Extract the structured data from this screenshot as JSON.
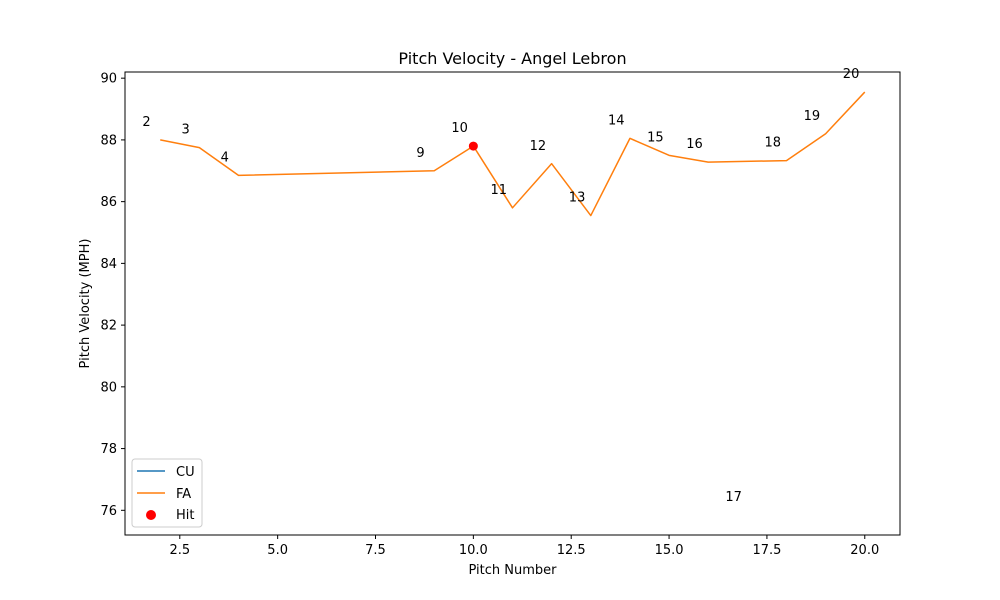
{
  "chart_data": {
    "type": "line",
    "title": "Pitch Velocity - Angel Lebron",
    "xlabel": "Pitch Number",
    "ylabel": "Pitch Velocity (MPH)",
    "xlim": [
      1.1,
      20.9
    ],
    "ylim": [
      75.2,
      90.2
    ],
    "xticks": [
      2.5,
      5.0,
      7.5,
      10.0,
      12.5,
      15.0,
      17.5,
      20.0
    ],
    "xtick_labels": [
      "2.5",
      "5.0",
      "7.5",
      "10.0",
      "12.5",
      "15.0",
      "17.5",
      "20.0"
    ],
    "yticks": [
      76,
      78,
      80,
      82,
      84,
      86,
      88,
      90
    ],
    "ytick_labels": [
      "76",
      "78",
      "80",
      "82",
      "84",
      "86",
      "88",
      "90"
    ],
    "grid": false,
    "legend_position": "lower-left",
    "series": [
      {
        "name": "CU",
        "color": "#1f77b4",
        "x": [],
        "y": []
      },
      {
        "name": "FA",
        "color": "#ff7f0e",
        "x": [
          2,
          3,
          4,
          9,
          10,
          11,
          12,
          13,
          14,
          15,
          16,
          18,
          19,
          20
        ],
        "y": [
          88.0,
          87.75,
          86.85,
          87.0,
          87.8,
          85.8,
          87.23,
          85.55,
          88.05,
          87.5,
          87.28,
          87.33,
          88.2,
          89.55
        ]
      }
    ],
    "scatter": [
      {
        "name": "Hit",
        "color": "#ff0000",
        "x": [
          10
        ],
        "y": [
          87.8
        ]
      }
    ],
    "annotations": [
      {
        "text": "2",
        "x": 1.65,
        "y": 88.45
      },
      {
        "text": "3",
        "x": 2.65,
        "y": 88.2
      },
      {
        "text": "4",
        "x": 3.65,
        "y": 87.3
      },
      {
        "text": "9",
        "x": 8.65,
        "y": 87.45
      },
      {
        "text": "10",
        "x": 9.65,
        "y": 88.25
      },
      {
        "text": "11",
        "x": 10.65,
        "y": 86.25
      },
      {
        "text": "12",
        "x": 11.65,
        "y": 87.68
      },
      {
        "text": "13",
        "x": 12.65,
        "y": 86.0
      },
      {
        "text": "14",
        "x": 13.65,
        "y": 88.5
      },
      {
        "text": "15",
        "x": 14.65,
        "y": 87.95
      },
      {
        "text": "16",
        "x": 15.65,
        "y": 87.73
      },
      {
        "text": "17",
        "x": 16.65,
        "y": 76.3
      },
      {
        "text": "18",
        "x": 17.65,
        "y": 87.78
      },
      {
        "text": "19",
        "x": 18.65,
        "y": 88.65
      },
      {
        "text": "20",
        "x": 19.65,
        "y": 90.0
      }
    ]
  }
}
